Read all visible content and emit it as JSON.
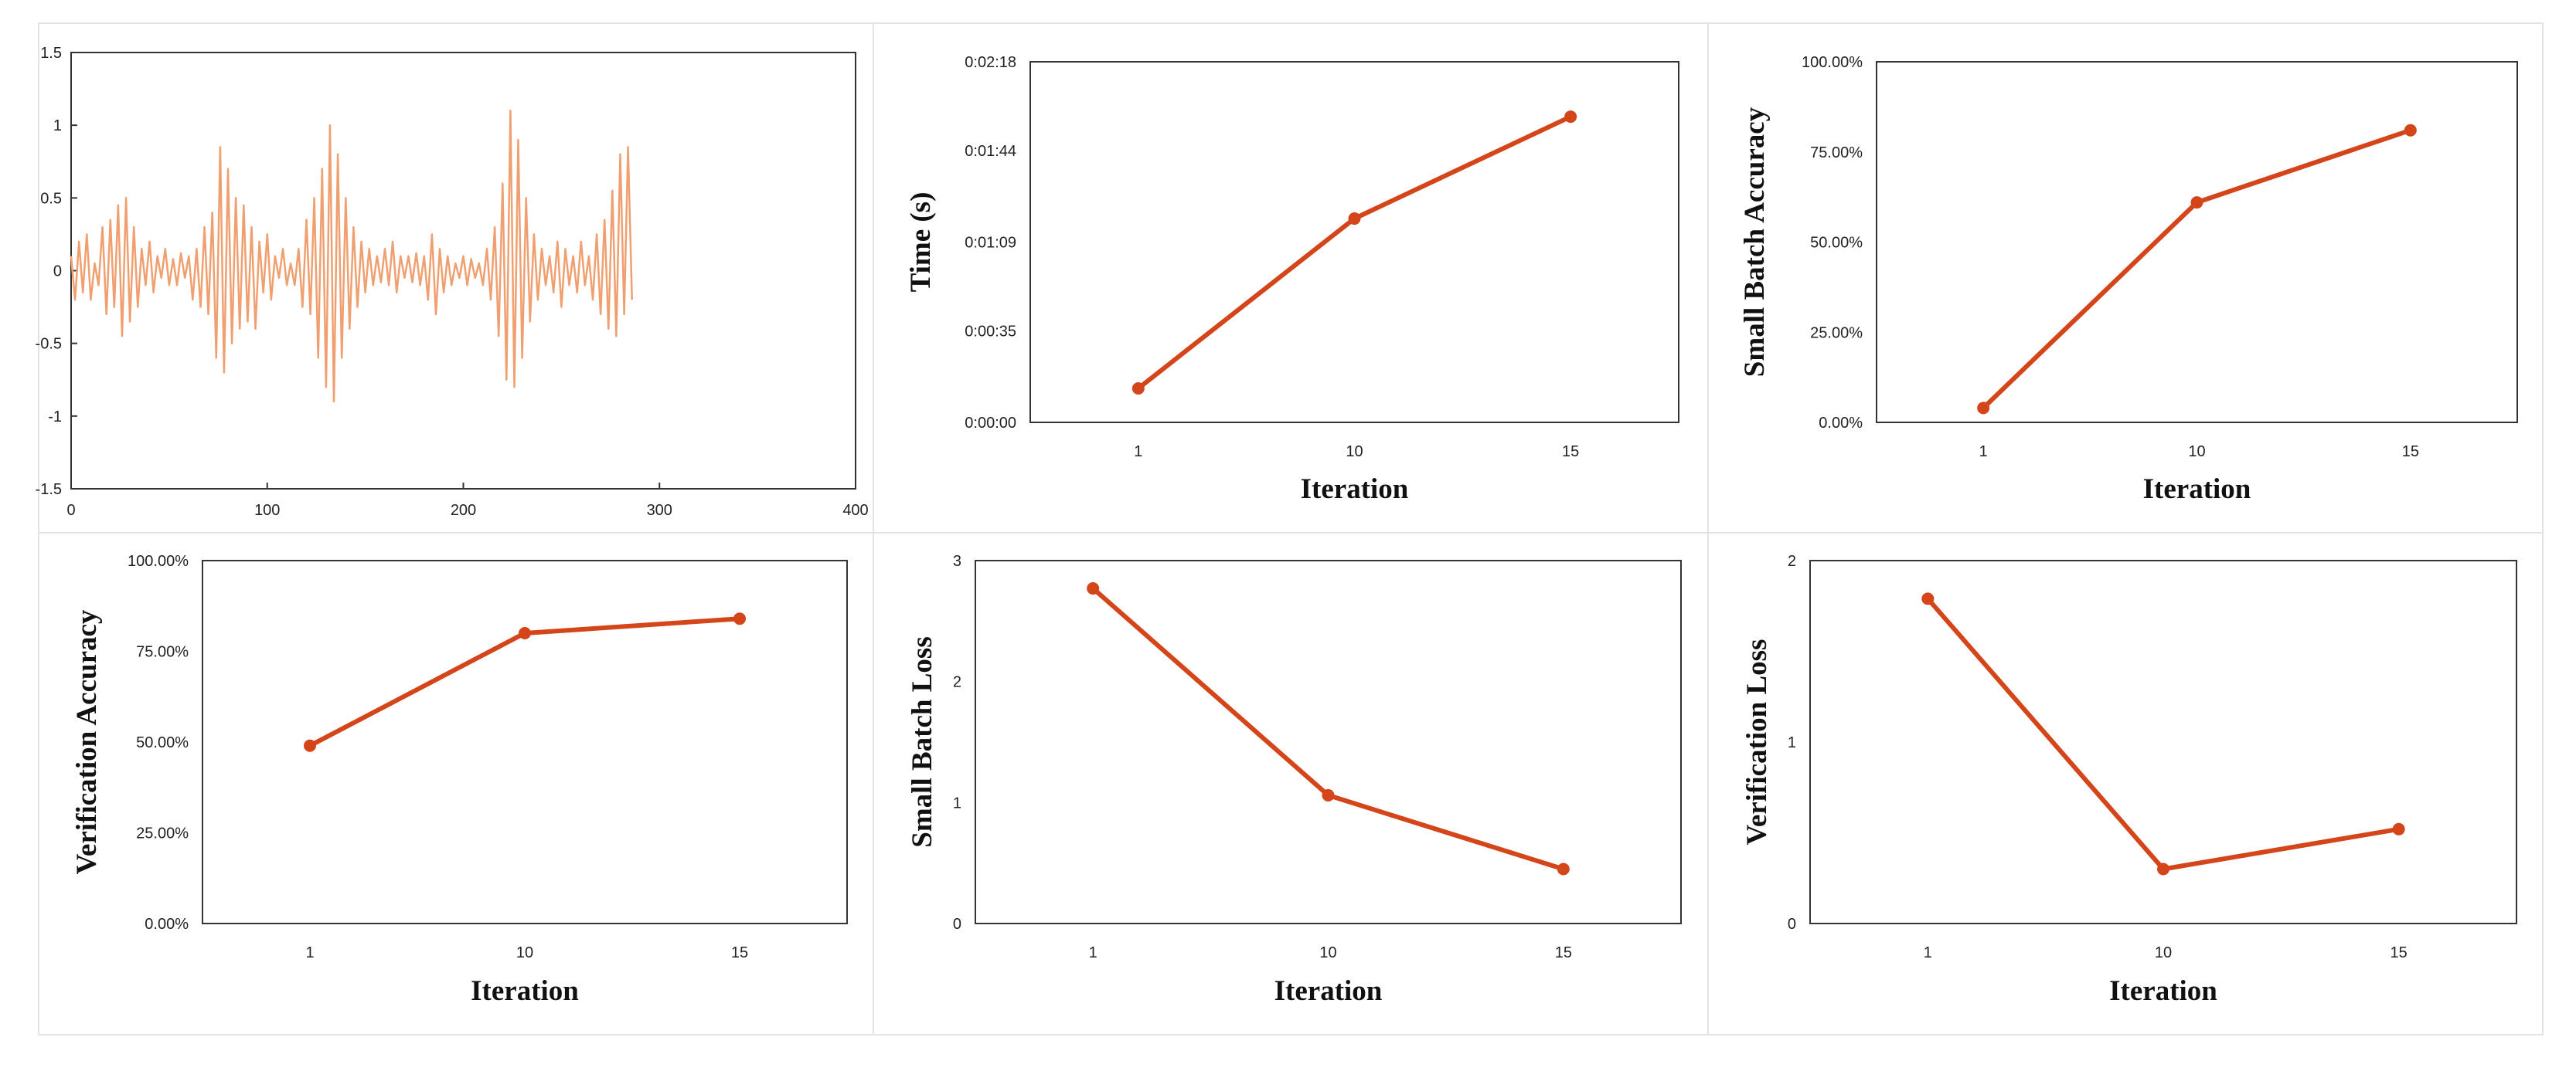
{
  "colors": {
    "line": "#d4451a",
    "signal": "#f0a070",
    "frame": "#333333",
    "panel_border": "#e4e4e4"
  },
  "chart_data": [
    {
      "type": "line",
      "id": "signal",
      "title": "",
      "xlabel": "",
      "ylabel": "",
      "xlim": [
        0,
        400
      ],
      "ylim": [
        -1.5,
        1.5
      ],
      "x_ticks": [
        0,
        100,
        200,
        300,
        400
      ],
      "x_tick_labels": [
        "0",
        "100",
        "200",
        "300",
        "400"
      ],
      "y_ticks": [
        1.5,
        1,
        0.5,
        0,
        -0.5,
        -1,
        -1.5
      ],
      "y_tick_labels": [
        "1.5",
        "1",
        "0.5",
        "0",
        "-0.5",
        "-1",
        "-1.5"
      ],
      "series": [
        {
          "name": "signal",
          "x_start": 0,
          "x_step": 2,
          "values": [
            0.1,
            -0.2,
            0.2,
            -0.15,
            0.25,
            -0.2,
            0.05,
            -0.1,
            0.3,
            -0.3,
            0.35,
            -0.25,
            0.45,
            -0.45,
            0.5,
            -0.35,
            0.3,
            -0.25,
            0.15,
            -0.1,
            0.2,
            -0.15,
            0.1,
            -0.05,
            0.15,
            -0.1,
            0.08,
            -0.1,
            0.12,
            -0.05,
            0.1,
            -0.2,
            0.15,
            -0.25,
            0.3,
            -0.3,
            0.4,
            -0.6,
            0.85,
            -0.7,
            0.7,
            -0.5,
            0.5,
            -0.4,
            0.45,
            -0.35,
            0.3,
            -0.4,
            0.2,
            -0.15,
            0.25,
            -0.2,
            0.1,
            -0.05,
            0.15,
            -0.1,
            0.05,
            -0.1,
            0.15,
            -0.25,
            0.35,
            -0.3,
            0.5,
            -0.6,
            0.7,
            -0.8,
            1.0,
            -0.9,
            0.8,
            -0.6,
            0.5,
            -0.4,
            0.3,
            -0.25,
            0.2,
            -0.15,
            0.15,
            -0.1,
            0.1,
            -0.08,
            0.15,
            -0.1,
            0.2,
            -0.15,
            0.1,
            -0.05,
            0.1,
            -0.08,
            0.12,
            -0.1,
            0.1,
            -0.2,
            0.25,
            -0.3,
            0.15,
            -0.15,
            0.1,
            -0.1,
            0.05,
            -0.05,
            0.1,
            -0.1,
            0.08,
            -0.05,
            0.05,
            -0.1,
            0.15,
            -0.2,
            0.3,
            -0.45,
            0.6,
            -0.75,
            1.1,
            -0.8,
            0.9,
            -0.6,
            0.5,
            -0.35,
            0.25,
            -0.2,
            0.15,
            -0.1,
            0.1,
            -0.15,
            0.2,
            -0.25,
            0.15,
            -0.1,
            0.1,
            -0.15,
            0.2,
            -0.1,
            0.1,
            -0.2,
            0.25,
            -0.3,
            0.35,
            -0.4,
            0.55,
            -0.45,
            0.8,
            -0.3,
            0.85,
            -0.2
          ]
        }
      ]
    },
    {
      "type": "line",
      "id": "time",
      "title": "",
      "xlabel": "Iteration",
      "ylabel": "Time (s)",
      "categories": [
        "1",
        "10",
        "15"
      ],
      "y_ticks": [
        0,
        35,
        69,
        104,
        138
      ],
      "y_tick_labels": [
        "0:00:00",
        "0:00:35",
        "0:01:09",
        "0:01:44",
        "0:02:18"
      ],
      "ylim": [
        0,
        138
      ],
      "series": [
        {
          "name": "Time",
          "values": [
            13,
            78,
            117
          ]
        }
      ]
    },
    {
      "type": "line",
      "id": "small-batch-accuracy",
      "title": "",
      "xlabel": "Iteration",
      "ylabel": "Small Batch Accuracy",
      "categories": [
        "1",
        "10",
        "15"
      ],
      "y_ticks": [
        0,
        25,
        50,
        75,
        100
      ],
      "y_tick_labels": [
        "0.00%",
        "25.00%",
        "50.00%",
        "75.00%",
        "100.00%"
      ],
      "ylim": [
        0,
        100
      ],
      "series": [
        {
          "name": "Small Batch Accuracy",
          "values": [
            4,
            61,
            81
          ]
        }
      ]
    },
    {
      "type": "line",
      "id": "verification-accuracy",
      "title": "",
      "xlabel": "Iteration",
      "ylabel": "Verification Accuracy",
      "categories": [
        "1",
        "10",
        "15"
      ],
      "y_ticks": [
        0,
        25,
        50,
        75,
        100
      ],
      "y_tick_labels": [
        "0.00%",
        "25.00%",
        "50.00%",
        "75.00%",
        "100.00%"
      ],
      "ylim": [
        0,
        100
      ],
      "series": [
        {
          "name": "Verification Accuracy",
          "values": [
            49,
            80,
            84
          ]
        }
      ]
    },
    {
      "type": "line",
      "id": "small-batch-loss",
      "title": "",
      "xlabel": "Iteration",
      "ylabel": "Small Batch Loss",
      "categories": [
        "1",
        "10",
        "15"
      ],
      "y_ticks": [
        0,
        1,
        2,
        3
      ],
      "y_tick_labels": [
        "0",
        "1",
        "2",
        "3"
      ],
      "ylim": [
        0,
        3
      ],
      "series": [
        {
          "name": "Small Batch Loss",
          "values": [
            2.77,
            1.06,
            0.45
          ]
        }
      ]
    },
    {
      "type": "line",
      "id": "verification-loss",
      "title": "",
      "xlabel": "Iteration",
      "ylabel": "Verification Loss",
      "categories": [
        "1",
        "10",
        "15"
      ],
      "y_ticks": [
        0,
        1,
        2
      ],
      "y_tick_labels": [
        "0",
        "1",
        "2"
      ],
      "ylim": [
        0,
        2
      ],
      "series": [
        {
          "name": "Verification Loss",
          "values": [
            1.79,
            0.3,
            0.52
          ]
        }
      ]
    }
  ]
}
